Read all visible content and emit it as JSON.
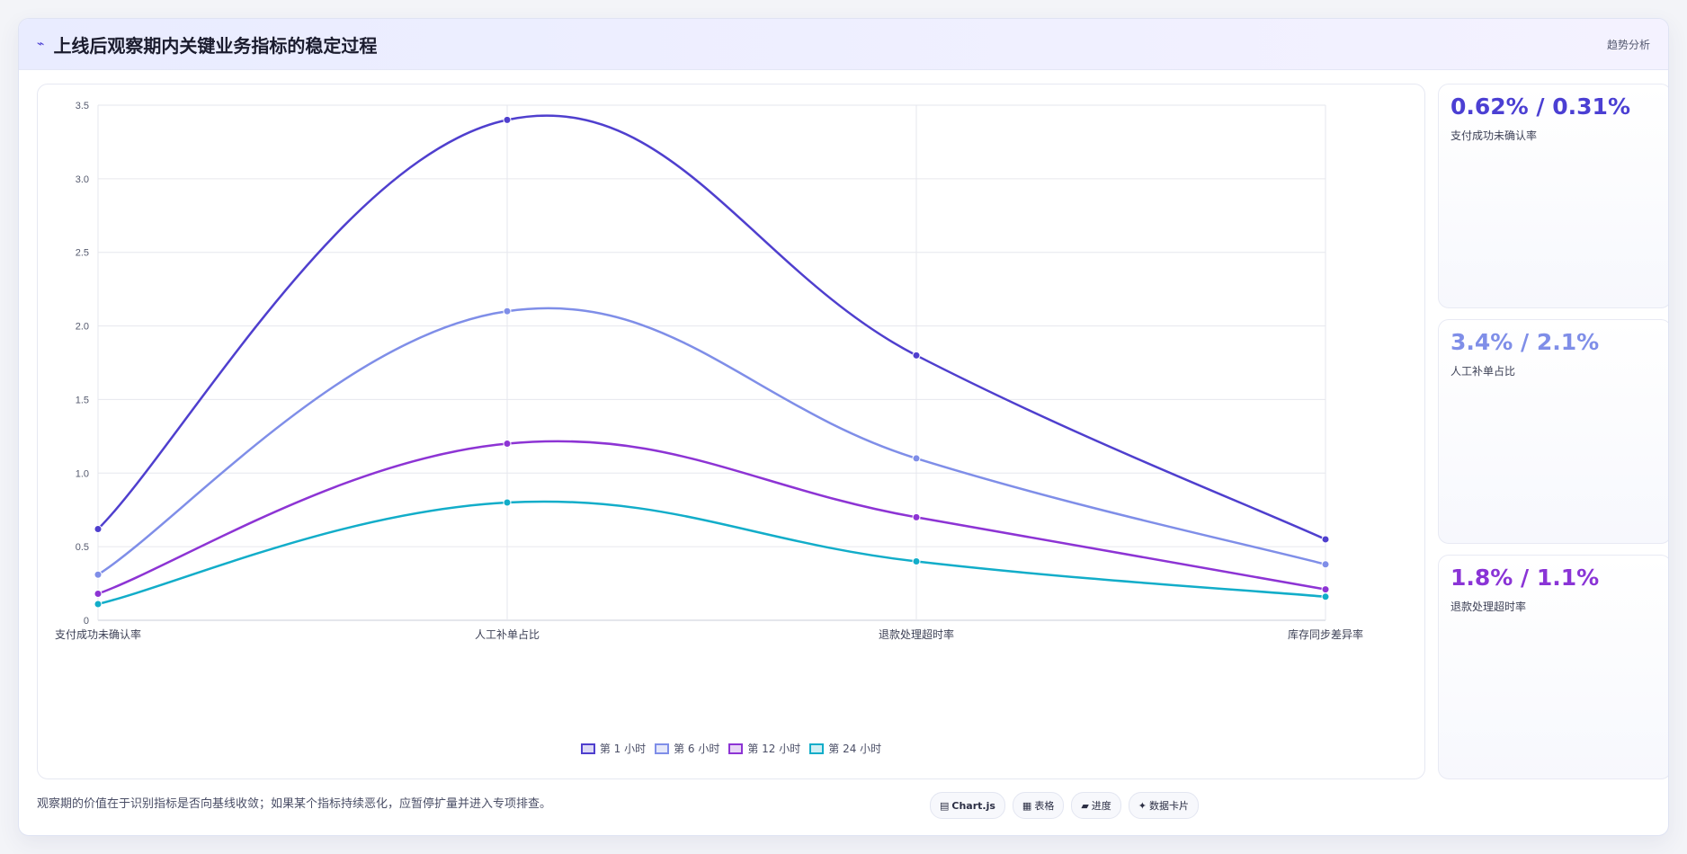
{
  "header": {
    "icon": "trend-line-icon",
    "title": "上线后观察期内关键业务指标的稳定过程",
    "right_label": "趋势分析"
  },
  "chart_data": {
    "type": "line",
    "categories": [
      "支付成功未确认率",
      "人工补单占比",
      "退款处理超时率",
      "库存同步差异率"
    ],
    "series": [
      {
        "name": "第 1 小时",
        "color": "#4f3fce",
        "values": [
          0.62,
          3.4,
          1.8,
          0.55
        ]
      },
      {
        "name": "第 6 小时",
        "color": "#7f8ee8",
        "values": [
          0.31,
          2.1,
          1.1,
          0.38
        ]
      },
      {
        "name": "第 12 小时",
        "color": "#8d34d4",
        "values": [
          0.18,
          1.2,
          0.7,
          0.21
        ]
      },
      {
        "name": "第 24 小时",
        "color": "#12adc9",
        "values": [
          0.11,
          0.8,
          0.4,
          0.16
        ]
      }
    ],
    "ylim": [
      0,
      3.5
    ],
    "yticks": [
      "0",
      "0.5",
      "1.0",
      "1.5",
      "2.0",
      "2.5",
      "3.0",
      "3.5"
    ],
    "grid": true,
    "legend": "bottom"
  },
  "stats": [
    {
      "value": "0.62% / 0.31%",
      "label": "支付成功未确认率",
      "color": "#4b3fd3"
    },
    {
      "value": "3.4% / 2.1%",
      "label": "人工补单占比",
      "color": "#7f8ee8"
    },
    {
      "value": "1.8% / 1.1%",
      "label": "退款处理超时率",
      "color": "#8a34d6"
    }
  ],
  "footer": {
    "note": "观察期的价值在于识别指标是否向基线收敛；如果某个指标持续恶化，应暂停扩量并进入专项排查。",
    "tags": [
      {
        "icon": "▤",
        "label": "Chart.js"
      },
      {
        "icon": "▦",
        "label": "表格"
      },
      {
        "icon": "▰",
        "label": "进度"
      },
      {
        "icon": "✦",
        "label": "数据卡片"
      }
    ]
  }
}
